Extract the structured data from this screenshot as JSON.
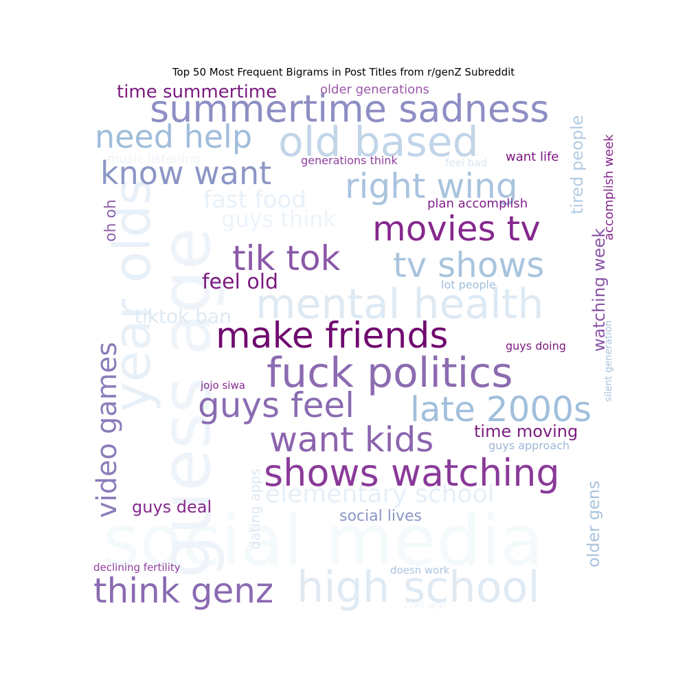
{
  "chart_data": {
    "type": "wordcloud",
    "title": "Top 50 Most Frequent Bigrams in Post Titles from r/genZ Subreddit",
    "colormap": "BuPu",
    "words": [
      {
        "text": "social media",
        "color": "#f4f9fc"
      },
      {
        "text": "guess age",
        "color": "#eef4f9"
      },
      {
        "text": "year olds",
        "color": "#e8f0f8"
      },
      {
        "text": "high school",
        "color": "#dfeaf3"
      },
      {
        "text": "mental health",
        "color": "#dde9f3"
      },
      {
        "text": "old based",
        "color": "#c2d5e8"
      },
      {
        "text": "summertime sadness",
        "color": "#8e8ec4"
      },
      {
        "text": "need help",
        "color": "#9fbddb"
      },
      {
        "text": "right wing",
        "color": "#a9c3de"
      },
      {
        "text": "know want",
        "color": "#8c96c6"
      },
      {
        "text": "movies tv",
        "color": "#85288d"
      },
      {
        "text": "tik tok",
        "color": "#8a58a8"
      },
      {
        "text": "tv shows",
        "color": "#a8c4de"
      },
      {
        "text": "make friends",
        "color": "#6f0a6e"
      },
      {
        "text": "fuck politics",
        "color": "#8c6bb1"
      },
      {
        "text": "guys feel",
        "color": "#8a6cb2"
      },
      {
        "text": "late 2000s",
        "color": "#a0bfdc"
      },
      {
        "text": "want kids",
        "color": "#8c64ae"
      },
      {
        "text": "shows watching",
        "color": "#8a3a99"
      },
      {
        "text": "think genz",
        "color": "#8a6ab1"
      },
      {
        "text": "video games",
        "color": "#8c7cba"
      },
      {
        "text": "elementary school",
        "color": "#e6eff7"
      },
      {
        "text": "fast food",
        "color": "#e8f0f8"
      },
      {
        "text": "guys think",
        "color": "#ecf3f9"
      },
      {
        "text": "tiktok ban",
        "color": "#dde9f3"
      },
      {
        "text": "feel old",
        "color": "#7b1a7e"
      },
      {
        "text": "time summertime",
        "color": "#7a1b7f"
      },
      {
        "text": "older generations",
        "color": "#9a57a8"
      },
      {
        "text": "music listening",
        "color": "#eef4fa"
      },
      {
        "text": "generations think",
        "color": "#8d3d9c"
      },
      {
        "text": "feel bad",
        "color": "#d8e5f1"
      },
      {
        "text": "want life",
        "color": "#7c1780"
      },
      {
        "text": "plan accomplish",
        "color": "#82208a"
      },
      {
        "text": "tired people",
        "color": "#b1cbe3"
      },
      {
        "text": "accomplish week",
        "color": "#85288d"
      },
      {
        "text": "watching week",
        "color": "#8a55a6"
      },
      {
        "text": "oh oh",
        "color": "#8c62ab"
      },
      {
        "text": "lot people",
        "color": "#9fbedc"
      },
      {
        "text": "silent generation",
        "color": "#a8c4de"
      },
      {
        "text": "guys doing",
        "color": "#7c1a80"
      },
      {
        "text": "jojo siwa",
        "color": "#85278e"
      },
      {
        "text": "time moving",
        "color": "#7a1b7f"
      },
      {
        "text": "guys approach",
        "color": "#9fb6d8"
      },
      {
        "text": "older gens",
        "color": "#a9c3de"
      },
      {
        "text": "dating apps",
        "color": "#dde8f3"
      },
      {
        "text": "guys deal",
        "color": "#85288d"
      },
      {
        "text": "social lives",
        "color": "#8c96c6"
      },
      {
        "text": "declining fertility",
        "color": "#8f3e9c"
      },
      {
        "text": "doesn work",
        "color": "#a8c4de"
      },
      {
        "text": "civil war",
        "color": "#eef4fa"
      }
    ]
  }
}
